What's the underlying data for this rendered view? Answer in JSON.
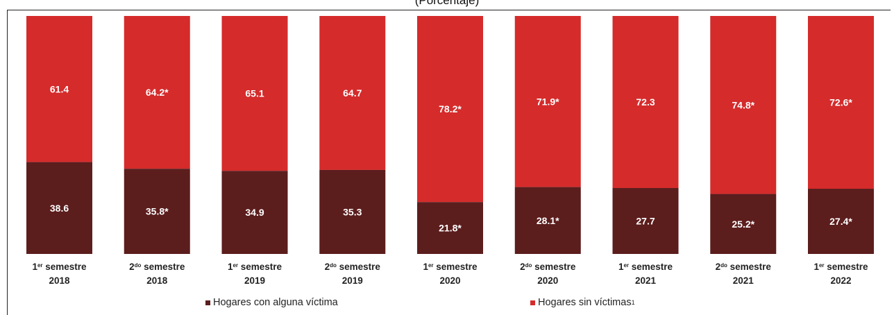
{
  "header": {
    "subtitle": "(Porcentaje)"
  },
  "colors": {
    "con_victima": "#5c1d1d",
    "sin_victimas": "#d52b2b",
    "label_text": "#ffffff"
  },
  "legend": {
    "items": [
      {
        "label": "Hogares con alguna víctima",
        "sup": "",
        "color": "#5c1d1d"
      },
      {
        "label": "Hogares sin víctimas",
        "sup": "1",
        "color": "#d52b2b"
      }
    ]
  },
  "chart_data": {
    "type": "bar",
    "stacked": true,
    "percent_total": 100,
    "categories": [
      {
        "line1_ord": "1",
        "line1_sup": "er",
        "line1_rest": " semestre",
        "line2": "2018"
      },
      {
        "line1_ord": "2",
        "line1_sup": "do",
        "line1_rest": " semestre",
        "line2": "2018"
      },
      {
        "line1_ord": "1",
        "line1_sup": "er",
        "line1_rest": " semestre",
        "line2": "2019"
      },
      {
        "line1_ord": "2",
        "line1_sup": "do",
        "line1_rest": " semestre",
        "line2": "2019"
      },
      {
        "line1_ord": "1",
        "line1_sup": "er",
        "line1_rest": " semestre",
        "line2": "2020"
      },
      {
        "line1_ord": "2",
        "line1_sup": "do",
        "line1_rest": " semestre",
        "line2": "2020"
      },
      {
        "line1_ord": "1",
        "line1_sup": "er",
        "line1_rest": " semestre",
        "line2": "2021"
      },
      {
        "line1_ord": "2",
        "line1_sup": "do",
        "line1_rest": " semestre",
        "line2": "2021"
      },
      {
        "line1_ord": "1",
        "line1_sup": "er",
        "line1_rest": " semestre",
        "line2": "2022"
      }
    ],
    "series": [
      {
        "name": "Hogares con alguna víctima",
        "color": "#5c1d1d",
        "values": [
          38.6,
          35.8,
          34.9,
          35.3,
          21.8,
          28.1,
          27.7,
          25.2,
          27.4
        ],
        "labels": [
          "38.6",
          "35.8*",
          "34.9",
          "35.3",
          "21.8*",
          "28.1*",
          "27.7",
          "25.2*",
          "27.4*"
        ]
      },
      {
        "name": "Hogares sin víctimas",
        "color": "#d52b2b",
        "values": [
          61.4,
          64.2,
          65.1,
          64.7,
          78.2,
          71.9,
          72.3,
          74.8,
          72.6
        ],
        "labels": [
          "61.4",
          "64.2*",
          "65.1",
          "64.7",
          "78.2*",
          "71.9*",
          "72.3",
          "74.8*",
          "72.6*"
        ]
      }
    ],
    "ylim": [
      0,
      100
    ],
    "grid": false,
    "legend_position": "bottom"
  }
}
